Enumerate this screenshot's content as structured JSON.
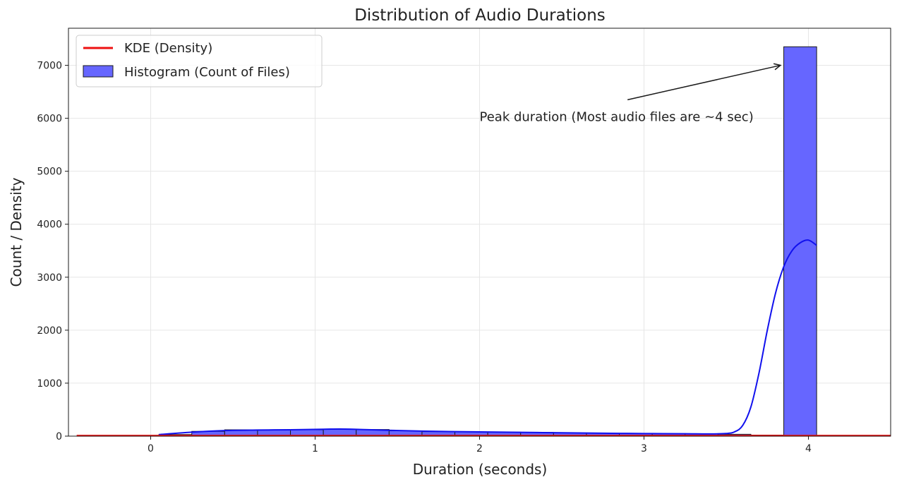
{
  "chart_data": {
    "type": "bar",
    "title": "Distribution of Audio Durations",
    "xlabel": "Duration (seconds)",
    "ylabel": "Count / Density",
    "xlim": [
      -0.5,
      4.5
    ],
    "ylim": [
      0,
      7700
    ],
    "x_ticks": [
      0,
      1,
      2,
      3,
      4
    ],
    "y_ticks": [
      0,
      1000,
      2000,
      3000,
      4000,
      5000,
      6000,
      7000
    ],
    "grid": true,
    "legend_position": "top-left",
    "colors": {
      "histogram_fill": "#6666ff",
      "histogram_edge": "#1a1a1a",
      "kde_density": "#ee1111",
      "histogram_kde": "#1111ee",
      "grid": "#e6e6e6"
    },
    "histogram": {
      "name": "Histogram (Count of Files)",
      "bin_edges": [
        0.05,
        0.25,
        0.45,
        0.65,
        0.85,
        1.05,
        1.25,
        1.45,
        1.65,
        1.85,
        2.05,
        2.25,
        2.45,
        2.65,
        2.85,
        3.05,
        3.25,
        3.45,
        3.65,
        3.85,
        4.05
      ],
      "counts": [
        30,
        90,
        120,
        120,
        120,
        130,
        125,
        100,
        85,
        80,
        75,
        70,
        60,
        55,
        50,
        45,
        40,
        35,
        20,
        7350
      ]
    },
    "histogram_kde": {
      "x": [
        0.05,
        0.25,
        0.45,
        0.65,
        0.85,
        1.05,
        1.15,
        1.25,
        1.45,
        1.65,
        1.85,
        2.05,
        2.25,
        2.45,
        2.65,
        2.85,
        3.05,
        3.25,
        3.4,
        3.5,
        3.55,
        3.6,
        3.65,
        3.7,
        3.75,
        3.8,
        3.85,
        3.9,
        3.95,
        4.0,
        4.05
      ],
      "y": [
        30,
        75,
        105,
        115,
        120,
        130,
        135,
        128,
        110,
        95,
        85,
        78,
        72,
        65,
        58,
        52,
        48,
        45,
        42,
        50,
        80,
        200,
        550,
        1200,
        2000,
        2700,
        3200,
        3500,
        3650,
        3700,
        3600
      ]
    },
    "kde_density": {
      "name": "KDE (Density)",
      "x": [
        -0.45,
        4.5
      ],
      "y": [
        8,
        8
      ]
    },
    "annotation": {
      "text": "Peak duration (Most audio files are ~4 sec)",
      "text_x": 2.0,
      "text_y": 5950,
      "arrow_to_x": 3.83,
      "arrow_to_y": 7000
    }
  }
}
